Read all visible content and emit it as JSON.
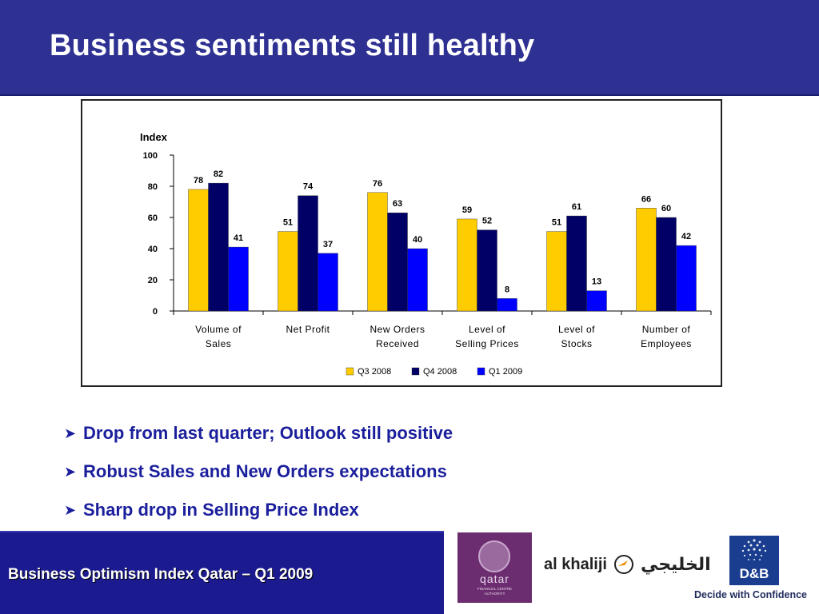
{
  "slide": {
    "title": "Business sentiments still healthy",
    "bullets": [
      "Drop from last quarter; Outlook still positive",
      "Robust Sales and New Orders expectations",
      "Sharp drop in Selling Price Index"
    ],
    "footer_text": "Business Optimism Index Qatar – Q1 2009",
    "bullet_icon": "right-arrow-icon"
  },
  "logos": {
    "qfc": {
      "text": "qatar",
      "subtitle_line1": "FINANCIAL CENTRE",
      "subtitle_line2": "AUTHORITY",
      "color": "#6c2c70"
    },
    "alkhaliji": {
      "text_en": "al khaliji",
      "text_ar": "الخليجي",
      "accent": "#f08a00"
    },
    "dnb": {
      "text": "D&B",
      "tagline": "Decide with Confidence",
      "color": "#1a3d8f"
    }
  },
  "colors": {
    "header_bg": "#2e3192",
    "footer_bg": "#1b1a8f",
    "bullet_text": "#1b1f9c"
  },
  "chart_data": {
    "type": "bar",
    "ylabel": "Index",
    "ylim": [
      0,
      100
    ],
    "yticks": [
      0,
      20,
      40,
      60,
      80,
      100
    ],
    "categories": [
      [
        "Volume of",
        "Sales"
      ],
      [
        "Net Profit",
        ""
      ],
      [
        "New Orders",
        "Received"
      ],
      [
        "Level of",
        "Selling Prices"
      ],
      [
        "Level of",
        "Stocks"
      ],
      [
        "Number of",
        "Employees"
      ]
    ],
    "series": [
      {
        "name": "Q3 2008",
        "color": "#ffcc00",
        "values": [
          78,
          51,
          76,
          59,
          51,
          66
        ]
      },
      {
        "name": "Q4 2008",
        "color": "#000066",
        "values": [
          82,
          74,
          63,
          52,
          61,
          60
        ]
      },
      {
        "name": "Q1 2009",
        "color": "#0000ff",
        "values": [
          41,
          37,
          40,
          8,
          13,
          42
        ]
      }
    ],
    "legend_position": "bottom",
    "grid": false
  }
}
